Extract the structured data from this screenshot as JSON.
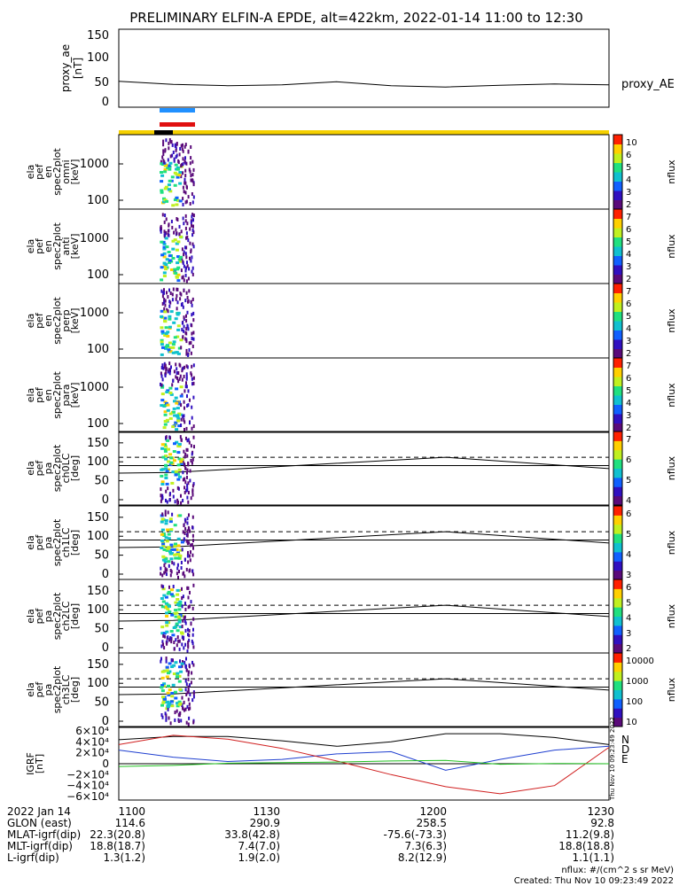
{
  "title": "PRELIMINARY ELFIN-A EPDE, alt=422km, 2022-01-14 11:00 to 12:30",
  "panels": [
    {
      "id": "ae",
      "ylabel": [
        "proxy_ae",
        "[nT]"
      ],
      "ticks": [
        "0",
        "50",
        "100",
        "150"
      ],
      "side_label": "proxy_AE"
    },
    {
      "id": "omni",
      "ylabel": [
        "ela",
        "pef",
        "en",
        "spec2plot",
        "omni",
        "[keV]"
      ],
      "ticks": [
        "100",
        "1000"
      ],
      "cbar": [
        "10",
        "6",
        "5",
        "4",
        "3",
        "2"
      ],
      "cbar_label": "nflux"
    },
    {
      "id": "anti",
      "ylabel": [
        "ela",
        "pef",
        "en",
        "spec2plot",
        "anti",
        "[keV]"
      ],
      "ticks": [
        "100",
        "1000"
      ],
      "cbar": [
        "7",
        "6",
        "5",
        "4",
        "3",
        "2"
      ],
      "cbar_label": "nflux"
    },
    {
      "id": "perp",
      "ylabel": [
        "ela",
        "pef",
        "en",
        "spec2plot",
        "perp",
        "[keV]"
      ],
      "ticks": [
        "100",
        "1000"
      ],
      "cbar": [
        "7",
        "6",
        "5",
        "4",
        "3",
        "2"
      ],
      "cbar_label": "nflux"
    },
    {
      "id": "para",
      "ylabel": [
        "ela",
        "pef",
        "en",
        "spec2plot",
        "para",
        "[keV]"
      ],
      "ticks": [
        "100",
        "1000"
      ],
      "cbar": [
        "7",
        "6",
        "5",
        "4",
        "3",
        "2"
      ],
      "cbar_label": "nflux"
    },
    {
      "id": "ch0",
      "ylabel": [
        "ela",
        "pef",
        "pa",
        "spec2plot",
        "ch0LC",
        "[deg]"
      ],
      "ticks": [
        "0",
        "50",
        "100",
        "150"
      ],
      "cbar": [
        "7",
        "6",
        "5",
        "4"
      ],
      "cbar_label": "nflux"
    },
    {
      "id": "ch1",
      "ylabel": [
        "ela",
        "pef",
        "pa",
        "spec2plot",
        "ch1LC",
        "[deg]"
      ],
      "ticks": [
        "0",
        "50",
        "100",
        "150"
      ],
      "cbar": [
        "6",
        "5",
        "4",
        "3"
      ],
      "cbar_label": "nflux"
    },
    {
      "id": "ch2",
      "ylabel": [
        "ela",
        "pef",
        "pa",
        "spec2plot",
        "ch2LC",
        "[deg]"
      ],
      "ticks": [
        "0",
        "50",
        "100",
        "150"
      ],
      "cbar": [
        "6",
        "5",
        "4",
        "3",
        "2"
      ],
      "cbar_label": "nflux"
    },
    {
      "id": "ch3",
      "ylabel": [
        "ela",
        "pef",
        "pa",
        "spec2plot",
        "ch3LC",
        "[deg]"
      ],
      "ticks": [
        "0",
        "50",
        "100",
        "150"
      ],
      "cbar": [
        "10000",
        "1000",
        "100",
        "10"
      ],
      "cbar_label": "nflux"
    },
    {
      "id": "igrf",
      "ylabel": [
        "IGRF",
        "[nT]"
      ],
      "ticks": [
        "−6×10⁴",
        "−4×10⁴",
        "−2×10⁴",
        "0",
        "2×10⁴",
        "4×10⁴",
        "6×10⁴"
      ],
      "legend": [
        "N",
        "D",
        "E"
      ]
    }
  ],
  "orbit_table": {
    "rows": [
      [
        "2022 Jan 14",
        "1100",
        "1130",
        "1200",
        "1230"
      ],
      [
        "GLON (east)",
        "114.6",
        "290.9",
        "258.5",
        "92.8"
      ],
      [
        "MLAT-igrf(dip)",
        "22.3(20.8)",
        "33.8(42.8)",
        "-75.6(-73.3)",
        "11.2(9.8)"
      ],
      [
        "MLT-igrf(dip)",
        "18.8(18.7)",
        "7.4(7.0)",
        "7.3(6.3)",
        "18.8(18.8)"
      ],
      [
        "L-igrf(dip)",
        "1.3(1.2)",
        "1.9(2.0)",
        "8.2(12.9)",
        "1.1(1.1)"
      ]
    ]
  },
  "footer": {
    "units": "nflux: #/(cm^2 s sr MeV)",
    "created": "Created: Thu Nov 10 09:23:49 2022",
    "vertical_stamp": "Thu Nov 10 09:23:49 2022"
  },
  "colors": {
    "n": "#1f3fd0",
    "d": "#d01f1f",
    "e": "#20c020",
    "bar_yellow": "#f5d000",
    "bar_blue": "#2090ff",
    "bar_red": "#e01010"
  },
  "chart_data": {
    "type": "heatmap",
    "x_range": [
      "11:00",
      "12:30"
    ],
    "ae_series": {
      "name": "proxy_AE",
      "ylim": [
        0,
        150
      ],
      "x_min": [
        0,
        10,
        20,
        30,
        40,
        50,
        60,
        70,
        80,
        90
      ],
      "values": [
        45,
        38,
        35,
        37,
        44,
        35,
        32,
        36,
        39,
        37
      ]
    },
    "pa_center_line": {
      "x_min": [
        0,
        10,
        30,
        60,
        90
      ],
      "values": [
        70,
        72,
        88,
        112,
        82
      ]
    },
    "pa_dashed_levels": [
      90,
      112
    ],
    "igrf": {
      "ylim": [
        -60000,
        60000
      ],
      "N": [
        25000,
        12000,
        4000,
        8000,
        18000,
        22000,
        -12000,
        8000,
        25000,
        32000
      ],
      "D": [
        35000,
        52000,
        45000,
        28000,
        5000,
        -20000,
        -42000,
        -55000,
        -40000,
        30000
      ],
      "E": [
        -5000,
        -3000,
        1000,
        2000,
        3000,
        5000,
        6000,
        -1000,
        500,
        0
      ],
      "total": [
        44000,
        50000,
        50000,
        42000,
        32000,
        40000,
        55000,
        55000,
        48000,
        35000
      ]
    }
  }
}
